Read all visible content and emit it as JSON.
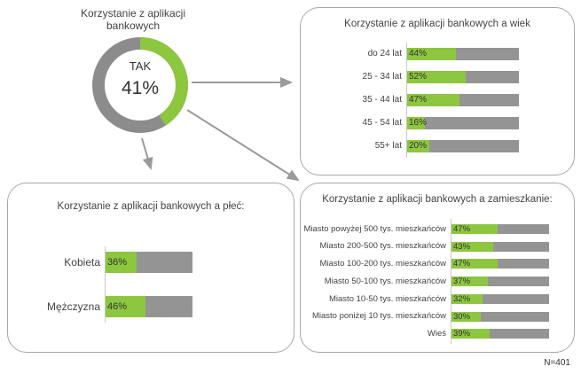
{
  "donut": {
    "title_line1": "Korzystanie z aplikacji",
    "title_line2": "bankowych",
    "label": "TAK",
    "value_text": "41%",
    "value": 41
  },
  "colors": {
    "green": "#8dc63f",
    "gray": "#949494",
    "ring_gray": "#8c8c8c"
  },
  "sample_note": "N=401",
  "chart_data": [
    {
      "type": "bar",
      "title": "Korzystanie z aplikacji bankowych a wiek",
      "categories": [
        "do 24 lat",
        "25 - 34 lat",
        "35 - 44 lat",
        "45 - 54 lat",
        "55+ lat"
      ],
      "values": [
        44,
        52,
        47,
        16,
        20
      ],
      "labels": [
        "44%",
        "52%",
        "47%",
        "16%",
        "20%"
      ],
      "xlim": [
        0,
        100
      ]
    },
    {
      "type": "bar",
      "title": "Korzystanie z aplikacji bankowych a płeć:",
      "categories": [
        "Kobieta",
        "Mężczyzna"
      ],
      "values": [
        36,
        46
      ],
      "labels": [
        "36%",
        "46%"
      ],
      "xlim": [
        0,
        100
      ]
    },
    {
      "type": "bar",
      "title": "Korzystanie z aplikacji bankowych a zamieszkanie:",
      "categories": [
        "Miasto powyżej 500 tys. mieszkańców",
        "Miasto 200-500 tys. mieszkańców",
        "Miasto 100-200 tys. mieszkańców",
        "Miasto 50-100 tys. mieszkańców",
        "Miasto 10-50 tys. mieszkańców",
        "Miasto poniżej 10 tys. mieszkańców",
        "Wieś"
      ],
      "values": [
        47,
        43,
        47,
        37,
        32,
        30,
        39
      ],
      "labels": [
        "47%",
        "43%",
        "47%",
        "37%",
        "32%",
        "30%",
        "39%"
      ],
      "xlim": [
        0,
        100
      ]
    }
  ]
}
